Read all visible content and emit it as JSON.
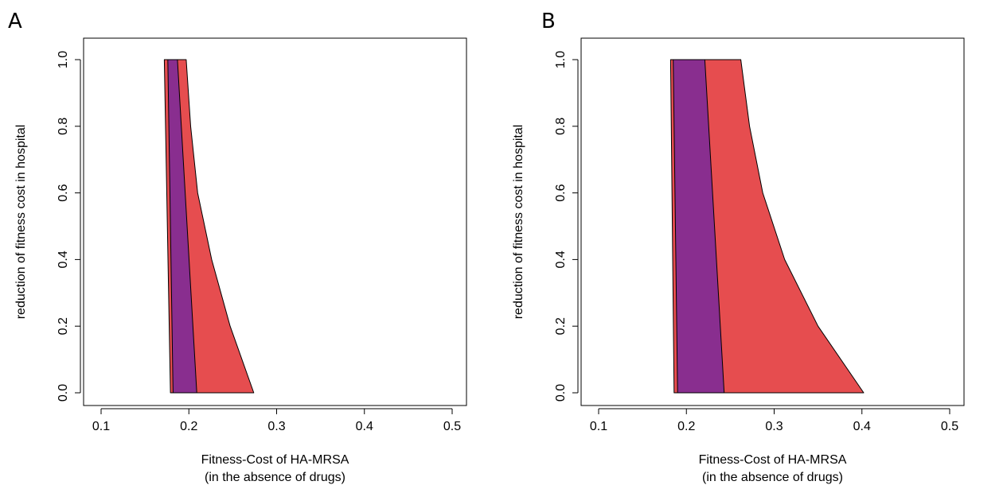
{
  "colors": {
    "outer_region": "#e64d4f",
    "inner_region": "#892e8f",
    "outline": "#000000",
    "background": "#ffffff"
  },
  "chart_data": [
    {
      "type": "area",
      "panel_label": "A",
      "xlabel": "Fitness-Cost of HA-MRSA",
      "xlabel_line2": "(in the absence of drugs)",
      "ylabel": "reduction of fitness cost in hospital",
      "xlim": [
        0.1,
        0.5
      ],
      "ylim": [
        0.0,
        1.0
      ],
      "xticks": [
        "0.1",
        "0.2",
        "0.3",
        "0.4",
        "0.5"
      ],
      "yticks": [
        "0.0",
        "0.2",
        "0.4",
        "0.6",
        "0.8",
        "1.0"
      ],
      "grid": false,
      "regions": [
        {
          "role": "outer",
          "color": "#e64d4f",
          "points": [
            [
              0.179,
              0.0
            ],
            [
              0.274,
              0.0
            ],
            [
              0.247,
              0.2
            ],
            [
              0.226,
              0.4
            ],
            [
              0.21,
              0.6
            ],
            [
              0.202,
              0.8
            ],
            [
              0.197,
              1.0
            ],
            [
              0.172,
              1.0
            ]
          ]
        },
        {
          "role": "inner",
          "color": "#892e8f",
          "points": [
            [
              0.182,
              0.0
            ],
            [
              0.209,
              0.0
            ],
            [
              0.187,
              1.0
            ],
            [
              0.176,
              1.0
            ]
          ]
        }
      ]
    },
    {
      "type": "area",
      "panel_label": "B",
      "xlabel": "Fitness-Cost of HA-MRSA",
      "xlabel_line2": "(in the absence of drugs)",
      "ylabel": "reduction of fitness cost in hospital",
      "xlim": [
        0.1,
        0.5
      ],
      "ylim": [
        0.0,
        1.0
      ],
      "xticks": [
        "0.1",
        "0.2",
        "0.3",
        "0.4",
        "0.5"
      ],
      "yticks": [
        "0.0",
        "0.2",
        "0.4",
        "0.6",
        "0.8",
        "1.0"
      ],
      "grid": false,
      "regions": [
        {
          "role": "outer",
          "color": "#e64d4f",
          "points": [
            [
              0.186,
              0.0
            ],
            [
              0.402,
              0.0
            ],
            [
              0.35,
              0.2
            ],
            [
              0.312,
              0.4
            ],
            [
              0.287,
              0.6
            ],
            [
              0.272,
              0.8
            ],
            [
              0.262,
              1.0
            ],
            [
              0.182,
              1.0
            ]
          ]
        },
        {
          "role": "inner",
          "color": "#892e8f",
          "points": [
            [
              0.19,
              0.0
            ],
            [
              0.243,
              0.0
            ],
            [
              0.221,
              1.0
            ],
            [
              0.185,
              1.0
            ]
          ]
        }
      ]
    }
  ]
}
